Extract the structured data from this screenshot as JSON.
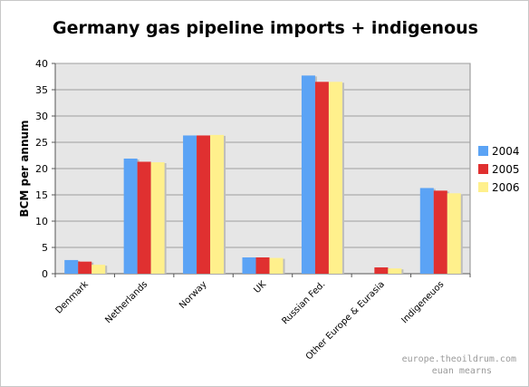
{
  "chart_data": {
    "type": "bar",
    "title": "Germany gas pipeline imports + indigenous",
    "xlabel": "",
    "ylabel": "BCM per annum",
    "ylim": [
      0,
      40
    ],
    "yticks": [
      0,
      5,
      10,
      15,
      20,
      25,
      30,
      35,
      40
    ],
    "grid": true,
    "legend_position": "right",
    "categories": [
      "Denmark",
      "Netherlands",
      "Norway",
      "UK",
      "Russian Fed.",
      "Other Europe & Eurasia",
      "Indigeneuos"
    ],
    "series": [
      {
        "name": "2004",
        "color": "#5ba3f5",
        "values": [
          2.6,
          21.9,
          26.3,
          3.1,
          37.7,
          0.0,
          16.3
        ]
      },
      {
        "name": "2005",
        "color": "#e03030",
        "values": [
          2.3,
          21.3,
          26.3,
          3.1,
          36.5,
          1.2,
          15.8
        ]
      },
      {
        "name": "2006",
        "color": "#fff08c",
        "values": [
          1.7,
          21.2,
          26.4,
          3.0,
          36.5,
          1.0,
          15.3
        ]
      }
    ],
    "plot_background": "#e6e6e6",
    "credit_lines": [
      "europe.theoildrum.com",
      "euan mearns"
    ]
  }
}
